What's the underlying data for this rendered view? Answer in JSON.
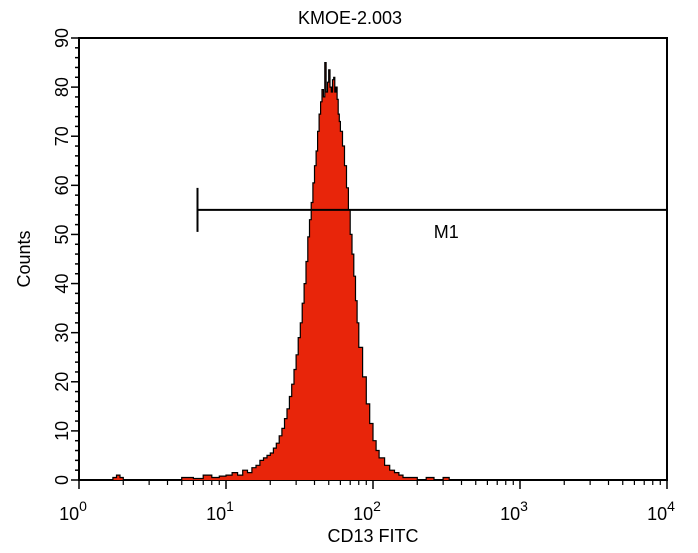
{
  "chart_data": {
    "type": "area",
    "title": "KMOE-2.003",
    "xlabel": "CD13 FITC",
    "ylabel": "Counts",
    "x_scale": "log",
    "xlim": [
      1,
      10000
    ],
    "ylim": [
      0,
      90
    ],
    "grid": false,
    "x_ticks": [
      {
        "base": "10",
        "exp": "0"
      },
      {
        "base": "10",
        "exp": "1"
      },
      {
        "base": "10",
        "exp": "2"
      },
      {
        "base": "10",
        "exp": "3"
      },
      {
        "base": "10",
        "exp": "4"
      }
    ],
    "y_ticks": [
      "0",
      "10",
      "20",
      "30",
      "40",
      "50",
      "60",
      "70",
      "80",
      "90"
    ],
    "fill_color": "#e8250a",
    "outline_color": "#000000",
    "histogram": {
      "x": [
        1,
        1.6,
        1.7,
        1.8,
        1.9,
        2.0,
        3,
        5,
        6,
        7,
        8,
        9,
        10,
        11,
        12,
        13,
        14,
        15,
        16,
        17,
        18,
        19,
        20,
        21,
        22,
        23,
        24,
        25,
        26,
        27,
        28,
        29,
        30,
        31,
        32,
        33,
        34,
        35,
        36,
        37,
        38,
        39,
        40,
        41,
        42,
        43,
        44,
        45,
        46,
        47,
        48,
        49,
        50,
        51,
        52,
        53,
        54,
        55,
        56,
        57,
        58,
        59,
        60,
        62,
        64,
        66,
        68,
        70,
        72,
        74,
        76,
        78,
        80,
        85,
        90,
        95,
        100,
        105,
        110,
        120,
        130,
        140,
        150,
        160,
        170,
        180,
        200,
        230,
        260,
        300,
        330,
        400,
        1000,
        10000
      ],
      "y": [
        0,
        0,
        0.5,
        1,
        0.5,
        0,
        0,
        0.5,
        0.3,
        1,
        0.5,
        0.8,
        1,
        1.5,
        1,
        2,
        1.5,
        2.5,
        3,
        4,
        4.5,
        5,
        5.5,
        6.5,
        7.5,
        9,
        10.5,
        12.5,
        14.5,
        17,
        19.5,
        22.5,
        25.5,
        29,
        32,
        36,
        40,
        44.5,
        49.5,
        53,
        56.5,
        60.5,
        64,
        67,
        71,
        74.5,
        77,
        79.5,
        78,
        85,
        79,
        81,
        83.5,
        80,
        79,
        81.5,
        82,
        79,
        80,
        77.5,
        74.5,
        73,
        71,
        68,
        64,
        59.5,
        55,
        50,
        46,
        41.5,
        36.5,
        32,
        27,
        21,
        15.5,
        11.5,
        8,
        6,
        4.5,
        3,
        2,
        1.5,
        1,
        0.5,
        0.5,
        0.5,
        0,
        0.5,
        0,
        0.5,
        0,
        0,
        0,
        0
      ]
    },
    "annotations": [
      {
        "label": "M1",
        "x_start": 6.4,
        "x_end": 10000,
        "y": 55
      }
    ]
  }
}
